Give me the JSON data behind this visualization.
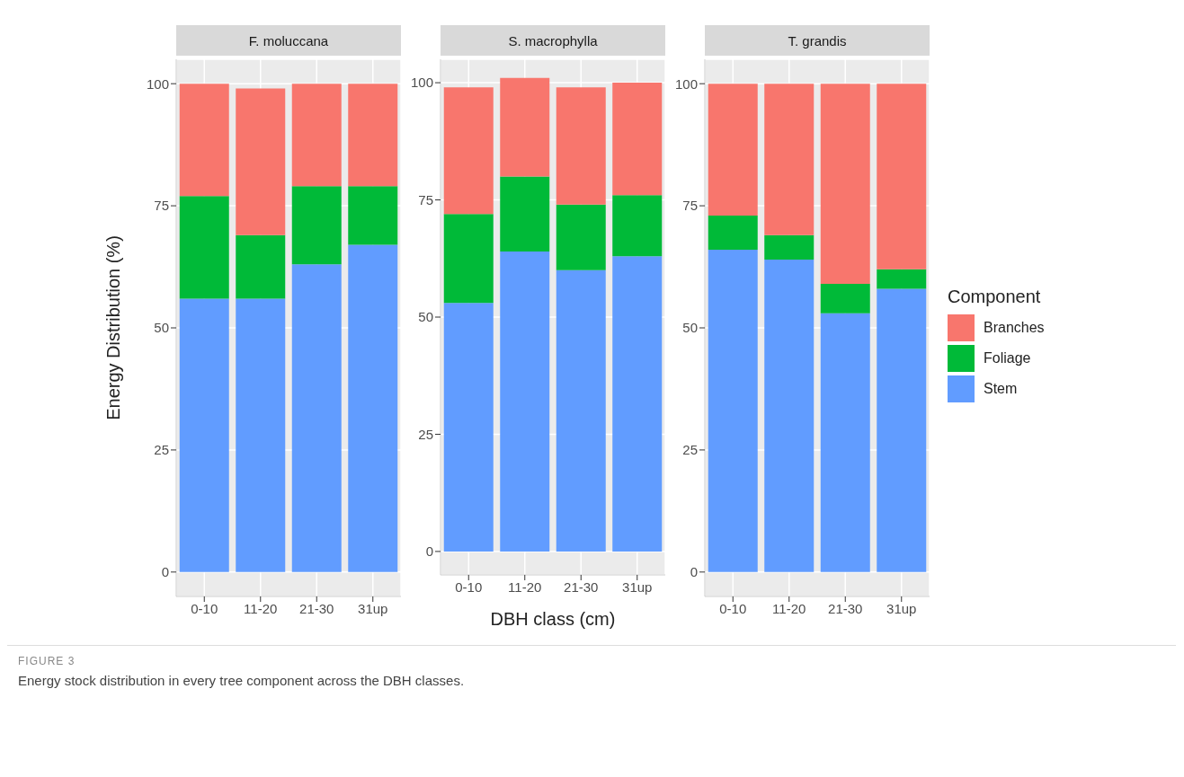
{
  "chart_data": [
    {
      "type": "bar",
      "title": "F. moluccana",
      "ylabel": "Energy Distribution (%)",
      "categories": [
        "0-10",
        "11-20",
        "21-30",
        "31up"
      ],
      "stacked": true,
      "grid": true,
      "ylim": [
        -5,
        105
      ],
      "yticks": [
        0,
        25,
        50,
        75,
        100
      ],
      "series": [
        {
          "color": "#619cff",
          "values": [
            56,
            56,
            63,
            67
          ]
        },
        {
          "color": "#00ba38",
          "values": [
            21,
            13,
            16,
            12
          ]
        },
        {
          "color": "#f8766d",
          "values": [
            23,
            30,
            21,
            21
          ]
        }
      ],
      "annotations": [
        "FIGURE 3",
        "Energy stock distribution in every tree component across the DBH classes."
      ]
    },
    {
      "type": "bar",
      "title": "S. macrophylla",
      "xlabel": "DBH class (cm)",
      "categories": [
        "0-10",
        "11-20",
        "21-30",
        "31up"
      ],
      "stacked": true,
      "grid": true,
      "ylim": [
        -5,
        105
      ],
      "yticks": [
        0,
        25,
        50,
        75,
        100
      ],
      "series": [
        {
          "color": "#619cff",
          "values": [
            53,
            64,
            60,
            63
          ]
        },
        {
          "color": "#00ba38",
          "values": [
            19,
            16,
            14,
            13
          ]
        },
        {
          "color": "#f8766d",
          "values": [
            27,
            21,
            25,
            24
          ]
        }
      ]
    },
    {
      "type": "bar",
      "title": "T. grandis",
      "legend_title": "Component",
      "legend": "right",
      "categories": [
        "0-10",
        "11-20",
        "21-30",
        "31up"
      ],
      "stacked": true,
      "grid": true,
      "ylim": [
        -5,
        105
      ],
      "yticks": [
        0,
        25,
        50,
        75,
        100
      ],
      "series": [
        {
          "name": "Stem",
          "color": "#619cff",
          "values": [
            66,
            64,
            53,
            58
          ]
        },
        {
          "name": "Foliage",
          "color": "#00ba38",
          "values": [
            7,
            5,
            6,
            4
          ]
        },
        {
          "name": "Branches",
          "color": "#f8766d",
          "values": [
            27,
            31,
            41,
            38
          ]
        }
      ]
    }
  ]
}
